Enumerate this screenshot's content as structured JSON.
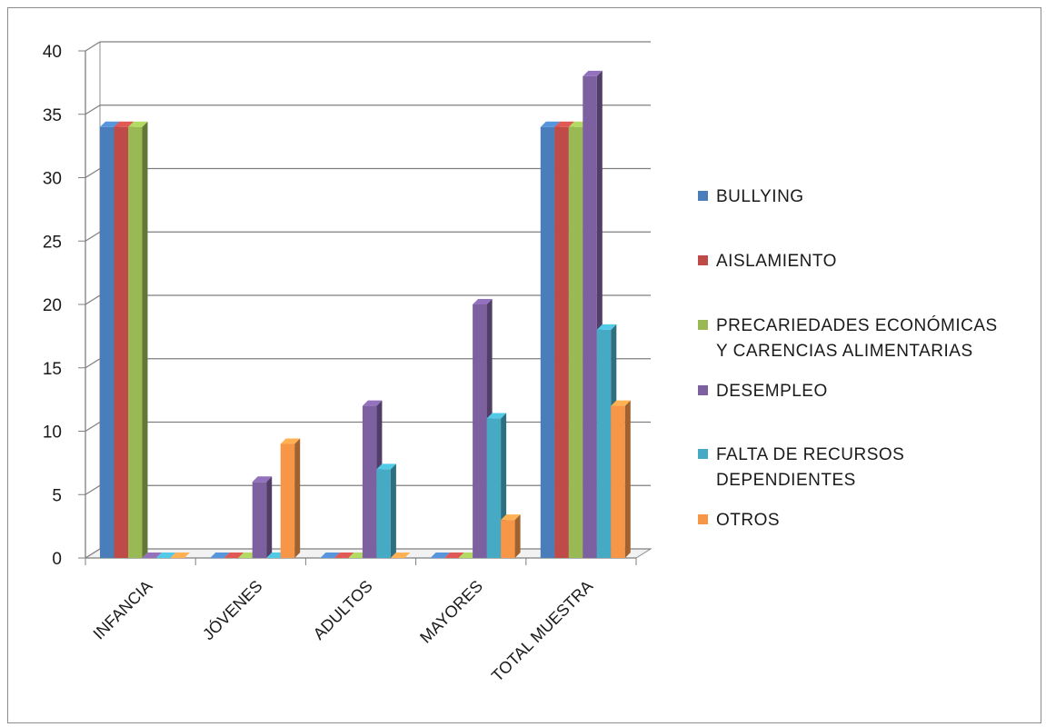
{
  "chart_data": {
    "type": "bar",
    "categories": [
      "INFANCIA",
      "JÓVENES",
      "ADULTOS",
      "MAYORES",
      "TOTAL MUESTRA"
    ],
    "series": [
      {
        "name": "BULLYING",
        "values": [
          34,
          0,
          0,
          0,
          34
        ]
      },
      {
        "name": "AISLAMIENTO",
        "values": [
          34,
          0,
          0,
          0,
          34
        ]
      },
      {
        "name": "PRECARIEDADES ECONÓMICAS Y CARENCIAS ALIMENTARIAS",
        "values": [
          34,
          0,
          0,
          0,
          34
        ]
      },
      {
        "name": "DESEMPLEO",
        "values": [
          0,
          6,
          12,
          20,
          38
        ]
      },
      {
        "name": "FALTA DE RECURSOS DEPENDIENTES",
        "values": [
          0,
          0,
          7,
          11,
          18
        ]
      },
      {
        "name": "OTROS",
        "values": [
          0,
          9,
          0,
          3,
          12
        ]
      }
    ],
    "legend_lines": [
      [
        "BULLYING"
      ],
      [
        "AISLAMIENTO"
      ],
      [
        "PRECARIEDADES ECONÓMICAS",
        "Y CARENCIAS ALIMENTARIAS"
      ],
      [
        "DESEMPLEO"
      ],
      [
        "FALTA DE RECURSOS",
        "DEPENDIENTES"
      ],
      [
        "OTROS"
      ]
    ],
    "ylim": [
      0,
      40
    ],
    "yticks": [
      0,
      5,
      10,
      15,
      20,
      25,
      30,
      35,
      40
    ],
    "grid": true,
    "legend_position": "right",
    "style": "3d-clustered-column",
    "colors": [
      "#4a7ebb",
      "#be4b48",
      "#98b954",
      "#7d60a0",
      "#46aac5",
      "#f79646"
    ]
  }
}
